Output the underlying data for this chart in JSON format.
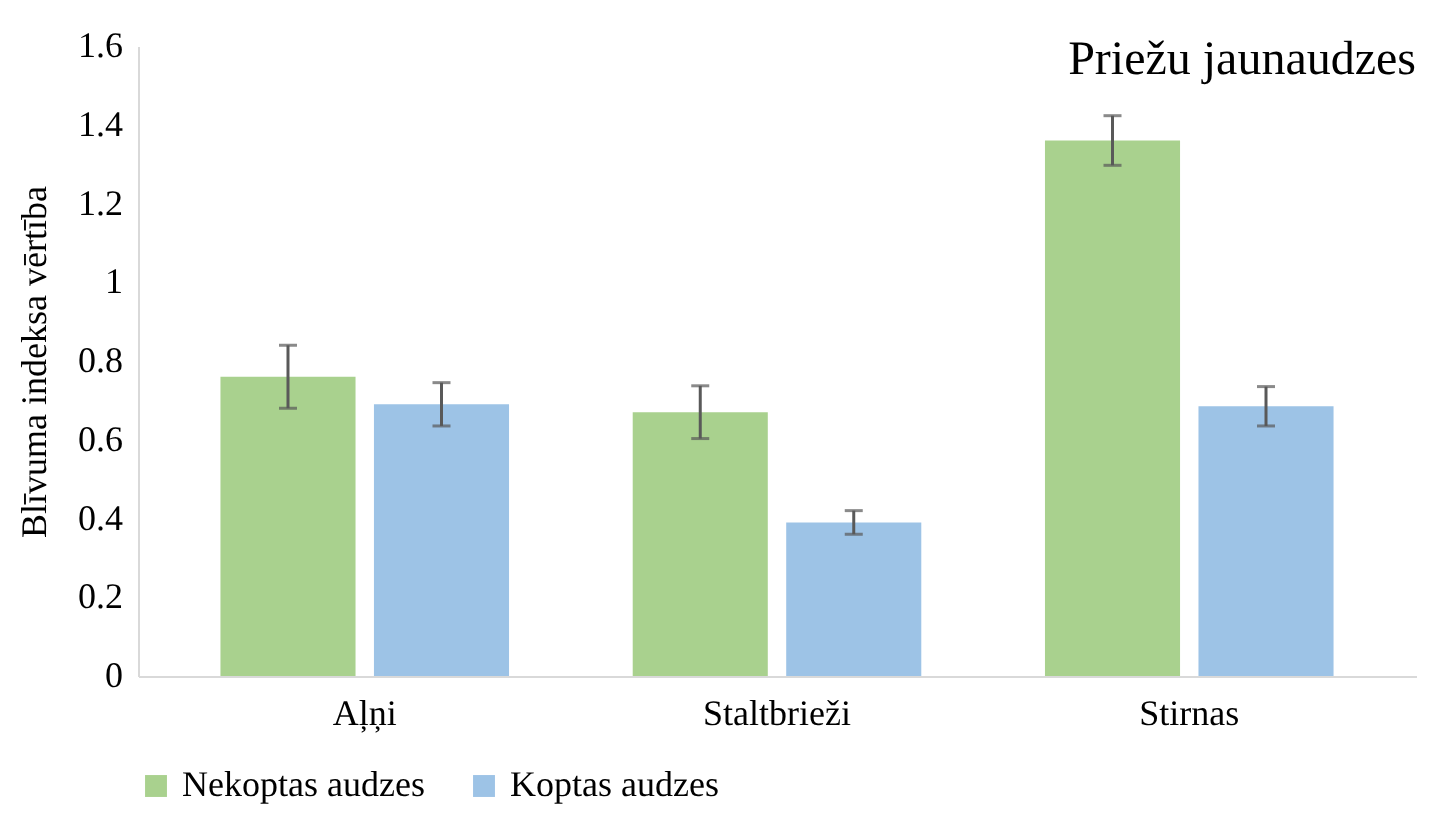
{
  "chart_data": {
    "type": "bar",
    "title": "Priežu jaunaudzes",
    "ylabel": "Blīvuma indeksa vērtība",
    "categories": [
      "Aļņi",
      "Staltbrieži",
      "Stirnas"
    ],
    "series": [
      {
        "name": "Nekoptas audzes",
        "color": "#a9d18e",
        "values": [
          0.76,
          0.67,
          1.36
        ],
        "errors": [
          0.08,
          0.067,
          0.063
        ]
      },
      {
        "name": "Koptas audzes",
        "color": "#9dc3e6",
        "values": [
          0.69,
          0.39,
          0.685
        ],
        "errors": [
          0.055,
          0.03,
          0.05
        ]
      }
    ],
    "ylim": [
      0,
      1.6
    ],
    "yticks": [
      0,
      0.2,
      0.4,
      0.6,
      0.8,
      1,
      1.2,
      1.4,
      1.6
    ],
    "grid": false,
    "legend": "bottom"
  }
}
